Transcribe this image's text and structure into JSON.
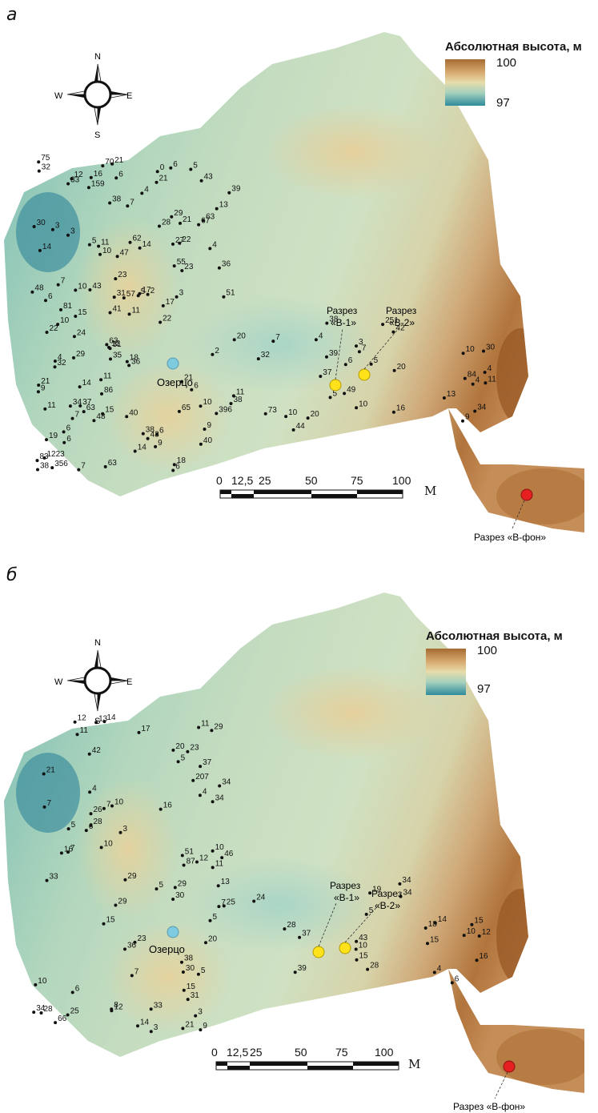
{
  "colors": {
    "lake": "#7ecbe0",
    "section_marker": "#ffe21a",
    "background_section_marker": "#e62020",
    "sample_point": "#111111",
    "elevation_high": "#a56b32",
    "elevation_low": "#2e8b9c"
  },
  "compass": {
    "n": "N",
    "s": "S",
    "e": "E",
    "w": "W",
    "icon": "compass-rose-icon"
  },
  "panels": [
    {
      "letter": "а",
      "legend": {
        "title": "Абсолютная высота, м",
        "high": "100",
        "low": "97"
      },
      "scale": {
        "ticks": [
          "0",
          "12,5",
          "25",
          "50",
          "75",
          "100"
        ],
        "unit": "М"
      },
      "lake_label": "Озерцо",
      "sections": [
        {
          "label_line1": "Разрез",
          "label_line2": "«В-1»"
        },
        {
          "label_line1": "Разрез",
          "label_line2": "«В-2»"
        }
      ],
      "background_section": "Разрез «В-фон»",
      "point_values": [
        "4",
        "6",
        "6",
        "37",
        "21",
        "4",
        "86",
        "7",
        "3",
        "43",
        "83",
        "73",
        "6",
        "5",
        "6",
        "20",
        "21",
        "51",
        "38",
        "30",
        "38",
        "63",
        "15",
        "7",
        "6",
        "24",
        "18",
        "34",
        "29",
        "36",
        "37",
        "32",
        "28",
        "29",
        "10",
        "5",
        "14",
        "31",
        "40",
        "38",
        "43",
        "36",
        "43",
        "16",
        "3",
        "32",
        "38",
        "10",
        "5",
        "47",
        "7",
        "2",
        "33",
        "55",
        "356",
        "251",
        "70",
        "31",
        "40",
        "5",
        "5",
        "22",
        "34",
        "396",
        "75",
        "7",
        "9",
        "39",
        "62",
        "57",
        "1223",
        "20",
        "63",
        "35",
        "65",
        "49",
        "22",
        "18",
        "14",
        "38",
        "13",
        "2",
        "9",
        "6",
        "67",
        "48",
        "63",
        "42",
        "0",
        "81",
        "7",
        "4",
        "39",
        "10",
        "6",
        "10",
        "4",
        "23",
        "63",
        "84",
        "32",
        "23",
        "48",
        "44",
        "30",
        "41",
        "21",
        "4",
        "10",
        "22",
        "6",
        "3",
        "16",
        "17",
        "6",
        "9",
        "11",
        "3",
        "9",
        "11",
        "14",
        "10",
        "14",
        "4",
        "21",
        "15",
        "19",
        "11",
        "159",
        "11",
        "11",
        "13",
        "7",
        "17",
        "21",
        "20",
        "27",
        "12",
        "11",
        "10",
        "12"
      ]
    },
    {
      "letter": "б",
      "legend": {
        "title": "Абсолютная высота, м",
        "high": "100",
        "low": "97"
      },
      "scale": {
        "ticks": [
          "0",
          "12,5",
          "25",
          "50",
          "75",
          "100"
        ],
        "unit": "М"
      },
      "lake_label": "Озерцо",
      "sections": [
        {
          "label_line1": "Разрез",
          "label_line2": "«В-1»"
        },
        {
          "label_line1": "Разрез",
          "label_line2": "«В-2»"
        }
      ],
      "background_section": "Разрез «В-фон»",
      "point_values": [
        "4",
        "10",
        "3",
        "5",
        "7",
        "28",
        "30",
        "39",
        "29",
        "7",
        "5",
        "7",
        "37",
        "15",
        "28",
        "24",
        "34",
        "6",
        "12",
        "15",
        "21",
        "33",
        "14",
        "18",
        "7",
        "29",
        "23",
        "34",
        "20",
        "25",
        "6",
        "4",
        "26",
        "29",
        "31",
        "6",
        "5",
        "3",
        "21",
        "37",
        "207",
        "87",
        "36",
        "28",
        "34",
        "29",
        "66",
        "34",
        "42",
        "51",
        "25",
        "10",
        "17",
        "46",
        "33",
        "15",
        "13",
        "5",
        "3",
        "19",
        "14",
        "30",
        "9",
        "28",
        "11",
        "5",
        "34",
        "43",
        "23",
        "16",
        "38",
        "10",
        "4",
        "5",
        "8",
        "14",
        "12",
        "11",
        "15",
        "16",
        "16",
        "13",
        "20",
        "12",
        "10",
        "12",
        "10",
        "15",
        "11",
        "10",
        "7"
      ]
    }
  ]
}
